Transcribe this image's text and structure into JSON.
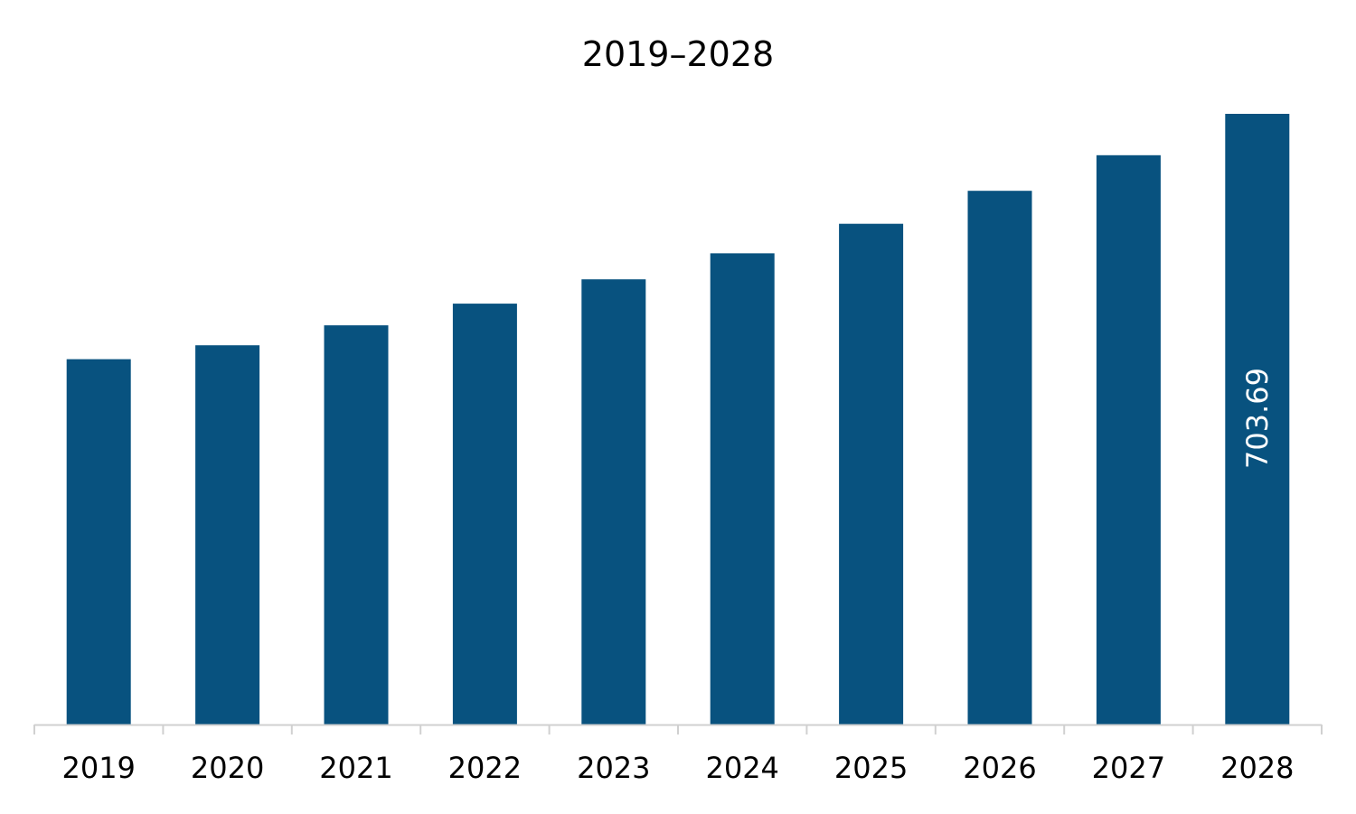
{
  "chart_data": {
    "type": "bar",
    "title": "2019–2028",
    "xlabel": "",
    "ylabel": "",
    "categories": [
      "2019",
      "2020",
      "2021",
      "2022",
      "2023",
      "2024",
      "2025",
      "2026",
      "2027",
      "2028"
    ],
    "series": [
      {
        "values": [
          421,
          437,
          460,
          485,
          513,
          543,
          577,
          615,
          656,
          703.69
        ],
        "data_labels": [
          "",
          "",
          "",
          "",
          "",
          "",
          "",
          "",
          "",
          "703.69"
        ]
      }
    ],
    "ylim": [
      0,
      703.69
    ],
    "grid": false,
    "legend": "none",
    "colors": {
      "bar": "#08527f",
      "axis": "#d0d0d0",
      "text": "#000000",
      "data_label": "#ffffff"
    }
  }
}
